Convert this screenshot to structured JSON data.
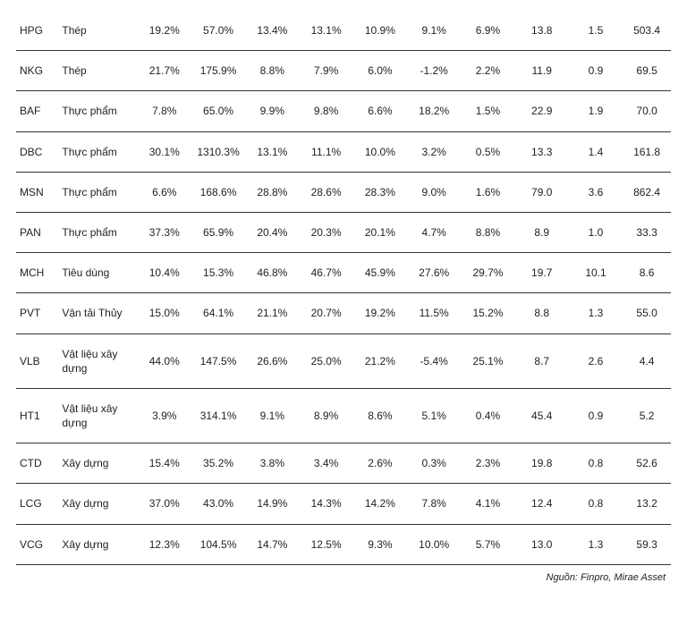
{
  "table": {
    "rows": [
      {
        "ticker": "HPG",
        "sector": "Thép",
        "c1": "19.2%",
        "c2": "57.0%",
        "c3": "13.4%",
        "c4": "13.1%",
        "c5": "10.9%",
        "c6": "9.1%",
        "c7": "6.9%",
        "c8": "13.8",
        "c9": "1.5",
        "c10": "503.4"
      },
      {
        "ticker": "NKG",
        "sector": "Thép",
        "c1": "21.7%",
        "c2": "175.9%",
        "c3": "8.8%",
        "c4": "7.9%",
        "c5": "6.0%",
        "c6": "-1.2%",
        "c7": "2.2%",
        "c8": "11.9",
        "c9": "0.9",
        "c10": "69.5"
      },
      {
        "ticker": "BAF",
        "sector": "Thực phẩm",
        "c1": "7.8%",
        "c2": "65.0%",
        "c3": "9.9%",
        "c4": "9.8%",
        "c5": "6.6%",
        "c6": "18.2%",
        "c7": "1.5%",
        "c8": "22.9",
        "c9": "1.9",
        "c10": "70.0"
      },
      {
        "ticker": "DBC",
        "sector": "Thực phẩm",
        "c1": "30.1%",
        "c2": "1310.3%",
        "c3": "13.1%",
        "c4": "11.1%",
        "c5": "10.0%",
        "c6": "3.2%",
        "c7": "0.5%",
        "c8": "13.3",
        "c9": "1.4",
        "c10": "161.8"
      },
      {
        "ticker": "MSN",
        "sector": "Thực phẩm",
        "c1": "6.6%",
        "c2": "168.6%",
        "c3": "28.8%",
        "c4": "28.6%",
        "c5": "28.3%",
        "c6": "9.0%",
        "c7": "1.6%",
        "c8": "79.0",
        "c9": "3.6",
        "c10": "862.4"
      },
      {
        "ticker": "PAN",
        "sector": "Thực phẩm",
        "c1": "37.3%",
        "c2": "65.9%",
        "c3": "20.4%",
        "c4": "20.3%",
        "c5": "20.1%",
        "c6": "4.7%",
        "c7": "8.8%",
        "c8": "8.9",
        "c9": "1.0",
        "c10": "33.3"
      },
      {
        "ticker": "MCH",
        "sector": "Tiêu dùng",
        "c1": "10.4%",
        "c2": "15.3%",
        "c3": "46.8%",
        "c4": "46.7%",
        "c5": "45.9%",
        "c6": "27.6%",
        "c7": "29.7%",
        "c8": "19.7",
        "c9": "10.1",
        "c10": "8.6"
      },
      {
        "ticker": "PVT",
        "sector": "Vận tải Thủy",
        "c1": "15.0%",
        "c2": "64.1%",
        "c3": "21.1%",
        "c4": "20.7%",
        "c5": "19.2%",
        "c6": "11.5%",
        "c7": "15.2%",
        "c8": "8.8",
        "c9": "1.3",
        "c10": "55.0"
      },
      {
        "ticker": "VLB",
        "sector": "Vật liệu xây dựng",
        "c1": "44.0%",
        "c2": "147.5%",
        "c3": "26.6%",
        "c4": "25.0%",
        "c5": "21.2%",
        "c6": "-5.4%",
        "c7": "25.1%",
        "c8": "8.7",
        "c9": "2.6",
        "c10": "4.4"
      },
      {
        "ticker": "HT1",
        "sector": "Vật liệu xây dựng",
        "c1": "3.9%",
        "c2": "314.1%",
        "c3": "9.1%",
        "c4": "8.9%",
        "c5": "8.6%",
        "c6": "5.1%",
        "c7": "0.4%",
        "c8": "45.4",
        "c9": "0.9",
        "c10": "5.2"
      },
      {
        "ticker": "CTD",
        "sector": "Xây dựng",
        "c1": "15.4%",
        "c2": "35.2%",
        "c3": "3.8%",
        "c4": "3.4%",
        "c5": "2.6%",
        "c6": "0.3%",
        "c7": "2.3%",
        "c8": "19.8",
        "c9": "0.8",
        "c10": "52.6"
      },
      {
        "ticker": "LCG",
        "sector": "Xây dựng",
        "c1": "37.0%",
        "c2": "43.0%",
        "c3": "14.9%",
        "c4": "14.3%",
        "c5": "14.2%",
        "c6": "7.8%",
        "c7": "4.1%",
        "c8": "12.4",
        "c9": "0.8",
        "c10": "13.2"
      },
      {
        "ticker": "VCG",
        "sector": "Xây dựng",
        "c1": "12.3%",
        "c2": "104.5%",
        "c3": "14.7%",
        "c4": "12.5%",
        "c5": "9.3%",
        "c6": "10.0%",
        "c7": "5.7%",
        "c8": "13.0",
        "c9": "1.3",
        "c10": "59.3"
      }
    ]
  },
  "source_note": "Nguồn: Finpro, Mirae Asset"
}
